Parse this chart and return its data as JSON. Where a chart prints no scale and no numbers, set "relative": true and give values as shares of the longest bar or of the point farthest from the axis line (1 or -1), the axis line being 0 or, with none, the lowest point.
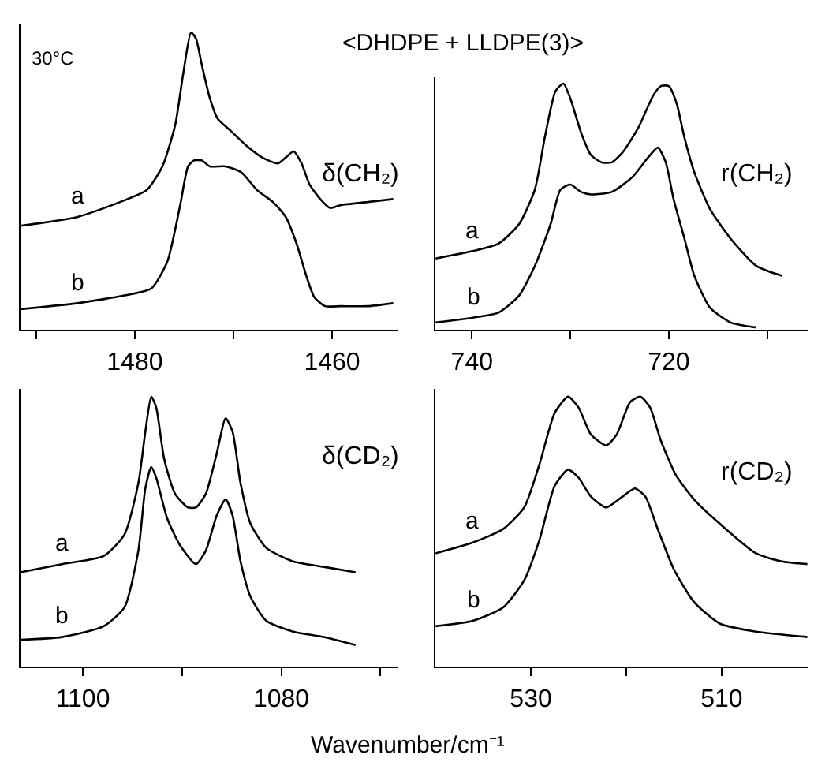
{
  "chart_data": [
    {
      "type": "line",
      "title": "<DHDPE + LLDPE(3)>",
      "annotations": [
        "30°C",
        "δ(CH₂)"
      ],
      "relative": true,
      "tick_labels": "x",
      "xlim": [
        1491.6,
        1453.4
      ],
      "xticks": [
        {
          "value": 1490,
          "label": null
        },
        1480,
        {
          "value": 1470,
          "label": null
        },
        1460
      ],
      "series": [
        {
          "name": "a",
          "color": "#000000",
          "x": [
            1491.6,
            1485.8,
            1481.5,
            1478.8,
            1477.2,
            1475.9,
            1475.1,
            1474.3,
            1473.8,
            1473.2,
            1472.4,
            1471.6,
            1470.3,
            1468.7,
            1467.1,
            1465.5,
            1464.7,
            1463.9,
            1463.1,
            1462.3,
            1461.2,
            1460.2,
            1459.1,
            1456.4,
            1453.8
          ],
          "values": [
            0.35,
            0.38,
            0.43,
            0.47,
            0.55,
            0.69,
            0.86,
            1.0,
            0.98,
            0.89,
            0.78,
            0.71,
            0.67,
            0.62,
            0.58,
            0.56,
            0.58,
            0.6,
            0.56,
            0.49,
            0.44,
            0.41,
            0.42,
            0.43,
            0.44
          ]
        },
        {
          "name": "b",
          "color": "#000000",
          "x": [
            1491.6,
            1485.8,
            1480.4,
            1478.3,
            1476.7,
            1475.4,
            1474.6,
            1474.0,
            1473.2,
            1472.4,
            1470.8,
            1469.2,
            1467.6,
            1466.0,
            1464.7,
            1463.6,
            1462.6,
            1461.8,
            1460.7,
            1459.1,
            1456.4,
            1453.8
          ],
          "values": [
            0.07,
            0.09,
            0.12,
            0.14,
            0.23,
            0.42,
            0.55,
            0.57,
            0.57,
            0.55,
            0.55,
            0.53,
            0.47,
            0.43,
            0.38,
            0.29,
            0.18,
            0.11,
            0.08,
            0.08,
            0.08,
            0.09
          ]
        }
      ]
    },
    {
      "type": "line",
      "annotations": [
        "r(CH₂)"
      ],
      "relative": true,
      "tick_labels": "x",
      "xlim": [
        743.7,
        705.9
      ],
      "xticks": [
        740,
        {
          "value": 730,
          "label": null
        },
        720,
        {
          "value": 710,
          "label": null
        }
      ],
      "series": [
        {
          "name": "a",
          "color": "#000000",
          "x": [
            743.7,
            739.9,
            737.3,
            735.2,
            733.6,
            732.6,
            731.5,
            730.7,
            730.0,
            728.9,
            727.9,
            726.8,
            725.8,
            724.7,
            723.1,
            721.6,
            720.8,
            720.0,
            719.2,
            718.4,
            717.4,
            715.8,
            713.7,
            711.1,
            708.5
          ],
          "values": [
            0.29,
            0.32,
            0.35,
            0.43,
            0.57,
            0.78,
            0.97,
            1.0,
            0.94,
            0.8,
            0.71,
            0.68,
            0.68,
            0.72,
            0.82,
            0.95,
            0.99,
            0.99,
            0.92,
            0.78,
            0.64,
            0.49,
            0.37,
            0.26,
            0.22
          ]
        },
        {
          "name": "b",
          "color": "#000000",
          "x": [
            743.7,
            739.9,
            737.3,
            735.2,
            733.6,
            732.0,
            731.0,
            730.0,
            728.9,
            727.9,
            725.8,
            723.7,
            722.1,
            721.1,
            720.3,
            719.5,
            718.4,
            717.4,
            715.8,
            713.7,
            711.1
          ],
          "values": [
            0.03,
            0.05,
            0.07,
            0.14,
            0.26,
            0.43,
            0.57,
            0.59,
            0.56,
            0.55,
            0.56,
            0.62,
            0.7,
            0.74,
            0.68,
            0.53,
            0.37,
            0.22,
            0.09,
            0.03,
            0.01
          ]
        }
      ]
    },
    {
      "type": "line",
      "annotations": [
        "δ(CD₂)"
      ],
      "xlabel": "Wavenumber/cm⁻¹",
      "relative": true,
      "tick_labels": "x",
      "xlim": [
        1106.3,
        1068.3
      ],
      "xticks": [
        1100,
        {
          "value": 1090,
          "label": null
        },
        1080,
        {
          "value": 1070,
          "label": null
        }
      ],
      "series": [
        {
          "name": "a",
          "color": "#000000",
          "x": [
            1106.3,
            1102.1,
            1097.9,
            1095.8,
            1094.4,
            1093.7,
            1093.1,
            1092.6,
            1091.8,
            1090.7,
            1089.4,
            1088.6,
            1087.6,
            1086.5,
            1085.6,
            1084.9,
            1084.1,
            1083.1,
            1081.5,
            1078.8,
            1075.7,
            1072.5
          ],
          "values": [
            0.35,
            0.38,
            0.41,
            0.49,
            0.68,
            0.87,
            1.0,
            0.96,
            0.77,
            0.64,
            0.59,
            0.59,
            0.64,
            0.79,
            0.92,
            0.87,
            0.68,
            0.53,
            0.44,
            0.39,
            0.37,
            0.35
          ]
        },
        {
          "name": "b",
          "color": "#000000",
          "x": [
            1106.3,
            1102.1,
            1097.9,
            1095.8,
            1094.4,
            1093.7,
            1093.1,
            1092.6,
            1091.5,
            1090.2,
            1088.6,
            1087.6,
            1086.5,
            1085.6,
            1084.9,
            1084.1,
            1083.1,
            1081.5,
            1078.8,
            1075.7,
            1072.5
          ],
          "values": [
            0.1,
            0.11,
            0.15,
            0.22,
            0.43,
            0.66,
            0.74,
            0.7,
            0.55,
            0.45,
            0.38,
            0.43,
            0.56,
            0.62,
            0.56,
            0.39,
            0.26,
            0.17,
            0.13,
            0.11,
            0.08
          ]
        }
      ]
    },
    {
      "type": "line",
      "annotations": [
        "r(CD₂)"
      ],
      "relative": true,
      "tick_labels": "x",
      "xlim": [
        540,
        501
      ],
      "xticks": [
        530,
        {
          "value": 520,
          "label": null
        },
        510
      ],
      "series": [
        {
          "name": "a",
          "color": "#000000",
          "x": [
            540.0,
            536.1,
            532.9,
            530.7,
            529.1,
            527.5,
            526.1,
            525.0,
            523.7,
            522.1,
            521.0,
            519.6,
            518.5,
            517.5,
            516.4,
            514.8,
            512.9,
            510.2,
            506.4,
            503.7,
            501.0
          ],
          "values": [
            0.42,
            0.46,
            0.51,
            0.59,
            0.75,
            0.94,
            1.0,
            0.96,
            0.86,
            0.82,
            0.86,
            0.98,
            1.0,
            0.96,
            0.84,
            0.71,
            0.62,
            0.53,
            0.42,
            0.39,
            0.38
          ]
        },
        {
          "name": "b",
          "color": "#000000",
          "x": [
            540.0,
            536.1,
            532.9,
            530.7,
            529.1,
            527.5,
            526.1,
            525.0,
            523.7,
            522.1,
            520.4,
            519.1,
            518.0,
            516.7,
            515.0,
            512.9,
            510.2,
            506.4,
            501.0
          ],
          "values": [
            0.15,
            0.17,
            0.22,
            0.32,
            0.47,
            0.67,
            0.73,
            0.7,
            0.63,
            0.59,
            0.63,
            0.66,
            0.63,
            0.51,
            0.36,
            0.24,
            0.16,
            0.13,
            0.11
          ]
        }
      ]
    }
  ]
}
